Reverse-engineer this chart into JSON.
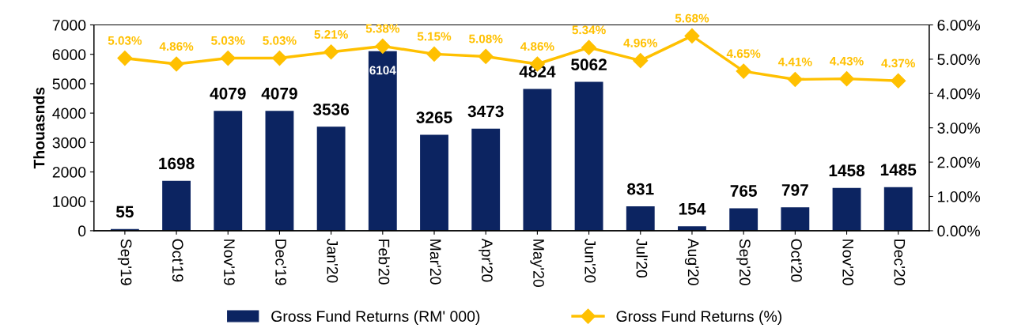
{
  "chart_data": {
    "type": "bar",
    "ylabel": "Thouasnds",
    "categories": [
      "Sep'19",
      "Oct'19",
      "Nov'19",
      "Dec'19",
      "Jan'20",
      "Feb'20",
      "Mar'20",
      "Apr'20",
      "May'20",
      "Jun'20",
      "Jul'20",
      "Aug'20",
      "Sep'20",
      "Oct'20",
      "Nov'20",
      "Dec'20"
    ],
    "series": [
      {
        "name": "Gross Fund Returns (RM' 000)",
        "color": "#0c2461",
        "data_labels": true,
        "values": [
          55,
          1698,
          4079,
          4079,
          3536,
          6104,
          3265,
          3473,
          4824,
          5062,
          831,
          154,
          765,
          797,
          1458,
          1485
        ]
      },
      {
        "name": "Gross Fund Returns (%)",
        "type": "line",
        "axis": "y2",
        "color": "#ffc000",
        "marker": "diamond",
        "line_style": "solid",
        "values": [
          5.03,
          4.86,
          5.03,
          5.03,
          5.21,
          5.38,
          5.15,
          5.08,
          4.86,
          5.34,
          4.96,
          5.68,
          4.65,
          4.41,
          4.43,
          4.37
        ],
        "value_labels": [
          "5.03%",
          "4.86%",
          "5.03%",
          "5.03%",
          "5.21%",
          "5.38%",
          "5.15%",
          "5.08%",
          "4.86%",
          "5.34%",
          "4.96%",
          "5.68%",
          "4.65%",
          "4.41%",
          "4.43%",
          "4.37%"
        ]
      }
    ],
    "ylim": [
      0,
      7000
    ],
    "yticks": [
      0,
      1000,
      2000,
      3000,
      4000,
      5000,
      6000,
      7000
    ],
    "y2lim": [
      0,
      6
    ],
    "y2ticks": [
      {
        "value": 0,
        "label": "0.00%"
      },
      {
        "value": 1,
        "label": "1.00%"
      },
      {
        "value": 2,
        "label": "2.00%"
      },
      {
        "value": 3,
        "label": "3.00%"
      },
      {
        "value": 4,
        "label": "4.00%"
      },
      {
        "value": 5,
        "label": "5.00%"
      },
      {
        "value": 6,
        "label": "6.00%"
      }
    ],
    "grid": false,
    "legend": "bottom"
  }
}
